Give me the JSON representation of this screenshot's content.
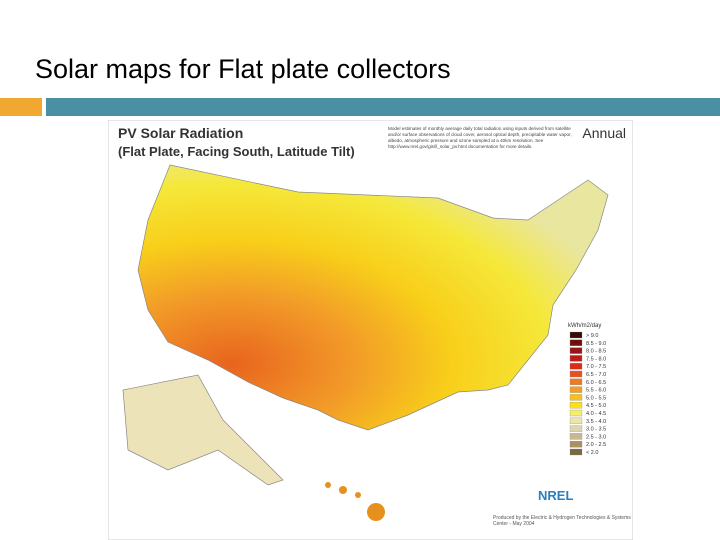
{
  "slide": {
    "title": "Solar maps for Flat plate collectors"
  },
  "map": {
    "title": "PV Solar Radiation",
    "subtitle": "(Flat Plate, Facing South, Latitude Tilt)",
    "period": "Annual",
    "description": "Model estimates of monthly average daily total radiation using inputs derived from satellite and/or surface observations of cloud cover, aerosol optical depth, precipitable water vapor, albedo, atmospheric pressure and ozone sampled at a 40km resolution. See http://www.nrel.gov/gis/il_solar_pv.html documentation for more details.",
    "legend": {
      "title": "kWh/m2/day",
      "items": [
        {
          "label": "> 9.0",
          "color": "#3a0a0a"
        },
        {
          "label": "8.5 - 9.0",
          "color": "#6e0f0f"
        },
        {
          "label": "8.0 - 8.5",
          "color": "#9a1414"
        },
        {
          "label": "7.5 - 8.0",
          "color": "#c01a1a"
        },
        {
          "label": "7.0 - 7.5",
          "color": "#dd2a1a"
        },
        {
          "label": "6.5 - 7.0",
          "color": "#e8501e"
        },
        {
          "label": "6.0 - 6.5",
          "color": "#ef7a22"
        },
        {
          "label": "5.5 - 6.0",
          "color": "#f49d26"
        },
        {
          "label": "5.0 - 5.5",
          "color": "#f8c01e"
        },
        {
          "label": "4.5 - 5.0",
          "color": "#fbe017"
        },
        {
          "label": "4.0 - 4.5",
          "color": "#f3ee6a"
        },
        {
          "label": "3.5 - 4.0",
          "color": "#e9e6a6"
        },
        {
          "label": "3.0 - 3.5",
          "color": "#dcd6b0"
        },
        {
          "label": "2.5 - 3.0",
          "color": "#c9b98c"
        },
        {
          "label": "2.0 - 2.5",
          "color": "#a89060"
        },
        {
          "label": "< 2.0",
          "color": "#7a6840"
        }
      ]
    },
    "logo": "NREL",
    "credit": "Produced by the Electric & Hydrogen Technologies & Systems Center - May 2004"
  }
}
